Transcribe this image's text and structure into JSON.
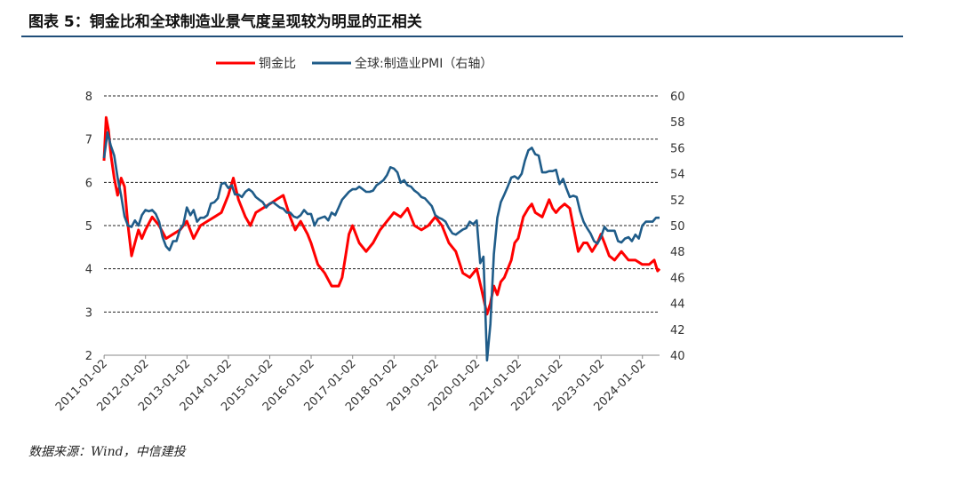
{
  "header": {
    "title": "图表 5：铜金比和全球制造业景气度呈现较为明显的正相关"
  },
  "footer": {
    "source": "数据来源：Wind，中信建投"
  },
  "chart_data": {
    "type": "line",
    "x_range": [
      "2011-01-01",
      "2024-06-01"
    ],
    "x_ticks": [
      "2011-01-02",
      "2012-01-02",
      "2013-01-02",
      "2014-01-02",
      "2015-01-02",
      "2016-01-02",
      "2017-01-02",
      "2018-01-02",
      "2019-01-02",
      "2020-01-02",
      "2021-01-02",
      "2022-01-02",
      "2023-01-02",
      "2024-01-02"
    ],
    "y_left": {
      "min": 2,
      "max": 8,
      "ticks": [
        2,
        3,
        4,
        5,
        6,
        7,
        8
      ]
    },
    "y_right": {
      "min": 40,
      "max": 60,
      "ticks": [
        40,
        42,
        44,
        46,
        48,
        50,
        52,
        54,
        56,
        58,
        60
      ]
    },
    "gridlines_left": [
      3,
      4,
      5,
      6,
      7,
      8
    ],
    "legend_position": "top",
    "series": [
      {
        "name": "铜金比",
        "axis": "left",
        "color": "#ff0000",
        "points": [
          [
            "2011-01-01",
            6.5
          ],
          [
            "2011-01-20",
            7.5
          ],
          [
            "2011-02-10",
            7.2
          ],
          [
            "2011-03-05",
            6.6
          ],
          [
            "2011-04-01",
            6.1
          ],
          [
            "2011-05-01",
            5.7
          ],
          [
            "2011-06-01",
            6.1
          ],
          [
            "2011-07-01",
            5.9
          ],
          [
            "2011-08-01",
            5.0
          ],
          [
            "2011-09-01",
            4.3
          ],
          [
            "2011-10-01",
            4.6
          ],
          [
            "2011-11-01",
            4.9
          ],
          [
            "2011-12-01",
            4.7
          ],
          [
            "2012-01-01",
            4.9
          ],
          [
            "2012-03-01",
            5.2
          ],
          [
            "2012-05-01",
            5.0
          ],
          [
            "2012-07-01",
            4.7
          ],
          [
            "2012-09-01",
            4.8
          ],
          [
            "2012-11-01",
            4.9
          ],
          [
            "2013-01-01",
            5.1
          ],
          [
            "2013-03-01",
            4.7
          ],
          [
            "2013-05-01",
            5.0
          ],
          [
            "2013-07-01",
            5.1
          ],
          [
            "2013-09-01",
            5.2
          ],
          [
            "2013-11-01",
            5.3
          ],
          [
            "2014-01-01",
            5.7
          ],
          [
            "2014-02-15",
            6.1
          ],
          [
            "2014-04-01",
            5.6
          ],
          [
            "2014-06-01",
            5.2
          ],
          [
            "2014-07-15",
            5.0
          ],
          [
            "2014-09-01",
            5.3
          ],
          [
            "2014-11-01",
            5.4
          ],
          [
            "2015-01-01",
            5.5
          ],
          [
            "2015-03-01",
            5.6
          ],
          [
            "2015-05-01",
            5.7
          ],
          [
            "2015-07-01",
            5.2
          ],
          [
            "2015-08-15",
            4.9
          ],
          [
            "2015-10-01",
            5.1
          ],
          [
            "2015-12-01",
            4.8
          ],
          [
            "2016-01-01",
            4.6
          ],
          [
            "2016-03-01",
            4.1
          ],
          [
            "2016-05-01",
            3.9
          ],
          [
            "2016-07-01",
            3.6
          ],
          [
            "2016-09-01",
            3.6
          ],
          [
            "2016-10-01",
            3.8
          ],
          [
            "2016-11-01",
            4.3
          ],
          [
            "2016-12-01",
            4.8
          ],
          [
            "2017-01-01",
            5.0
          ],
          [
            "2017-03-01",
            4.6
          ],
          [
            "2017-05-01",
            4.4
          ],
          [
            "2017-07-01",
            4.6
          ],
          [
            "2017-09-01",
            4.9
          ],
          [
            "2017-11-01",
            5.1
          ],
          [
            "2018-01-01",
            5.3
          ],
          [
            "2018-03-01",
            5.2
          ],
          [
            "2018-05-01",
            5.4
          ],
          [
            "2018-07-01",
            5.0
          ],
          [
            "2018-09-01",
            4.9
          ],
          [
            "2018-11-01",
            5.0
          ],
          [
            "2019-01-01",
            5.2
          ],
          [
            "2019-03-01",
            5.0
          ],
          [
            "2019-05-01",
            4.6
          ],
          [
            "2019-07-01",
            4.4
          ],
          [
            "2019-09-01",
            3.9
          ],
          [
            "2019-11-01",
            3.8
          ],
          [
            "2020-01-01",
            4.0
          ],
          [
            "2020-02-15",
            3.5
          ],
          [
            "2020-04-01",
            2.95
          ],
          [
            "2020-05-01",
            3.2
          ],
          [
            "2020-06-01",
            3.6
          ],
          [
            "2020-07-01",
            3.4
          ],
          [
            "2020-08-01",
            3.7
          ],
          [
            "2020-09-01",
            3.8
          ],
          [
            "2020-11-01",
            4.2
          ],
          [
            "2020-12-01",
            4.6
          ],
          [
            "2021-01-01",
            4.7
          ],
          [
            "2021-02-15",
            5.2
          ],
          [
            "2021-04-01",
            5.4
          ],
          [
            "2021-05-01",
            5.5
          ],
          [
            "2021-06-01",
            5.3
          ],
          [
            "2021-08-01",
            5.2
          ],
          [
            "2021-10-01",
            5.6
          ],
          [
            "2021-11-01",
            5.4
          ],
          [
            "2021-12-01",
            5.3
          ],
          [
            "2022-01-01",
            5.4
          ],
          [
            "2022-02-15",
            5.5
          ],
          [
            "2022-04-01",
            5.4
          ],
          [
            "2022-05-01",
            5.0
          ],
          [
            "2022-06-15",
            4.4
          ],
          [
            "2022-08-01",
            4.6
          ],
          [
            "2022-09-01",
            4.6
          ],
          [
            "2022-10-15",
            4.4
          ],
          [
            "2022-12-01",
            4.6
          ],
          [
            "2023-01-01",
            4.8
          ],
          [
            "2023-02-01",
            4.6
          ],
          [
            "2023-03-15",
            4.3
          ],
          [
            "2023-05-01",
            4.2
          ],
          [
            "2023-07-01",
            4.4
          ],
          [
            "2023-09-01",
            4.2
          ],
          [
            "2023-11-01",
            4.2
          ],
          [
            "2024-01-01",
            4.1
          ],
          [
            "2024-03-01",
            4.1
          ],
          [
            "2024-04-15",
            4.2
          ],
          [
            "2024-05-15",
            3.95
          ],
          [
            "2024-06-01",
            4.0
          ]
        ]
      },
      {
        "name": "全球:制造业PMI（右轴）",
        "axis": "right",
        "color": "#1f5c89",
        "points": [
          [
            "2011-01-01",
            55.2
          ],
          [
            "2011-02-01",
            57.2
          ],
          [
            "2011-03-01",
            56.2
          ],
          [
            "2011-04-01",
            55.4
          ],
          [
            "2011-05-01",
            53.7
          ],
          [
            "2011-06-01",
            52.3
          ],
          [
            "2011-07-01",
            50.7
          ],
          [
            "2011-08-01",
            50.0
          ],
          [
            "2011-09-01",
            49.9
          ],
          [
            "2011-10-01",
            50.4
          ],
          [
            "2011-11-01",
            50.0
          ],
          [
            "2011-12-01",
            50.8
          ],
          [
            "2012-01-01",
            51.2
          ],
          [
            "2012-02-01",
            51.1
          ],
          [
            "2012-03-01",
            51.2
          ],
          [
            "2012-04-01",
            50.9
          ],
          [
            "2012-05-01",
            50.3
          ],
          [
            "2012-06-01",
            49.1
          ],
          [
            "2012-07-01",
            48.4
          ],
          [
            "2012-08-01",
            48.1
          ],
          [
            "2012-09-01",
            48.8
          ],
          [
            "2012-10-01",
            48.8
          ],
          [
            "2012-11-01",
            49.7
          ],
          [
            "2012-12-01",
            50.1
          ],
          [
            "2013-01-01",
            51.4
          ],
          [
            "2013-02-01",
            50.8
          ],
          [
            "2013-03-01",
            51.2
          ],
          [
            "2013-04-01",
            50.3
          ],
          [
            "2013-05-01",
            50.6
          ],
          [
            "2013-06-01",
            50.6
          ],
          [
            "2013-07-01",
            50.8
          ],
          [
            "2013-08-01",
            51.7
          ],
          [
            "2013-09-01",
            51.8
          ],
          [
            "2013-10-01",
            52.1
          ],
          [
            "2013-11-01",
            53.2
          ],
          [
            "2013-12-01",
            53.3
          ],
          [
            "2014-01-01",
            52.9
          ],
          [
            "2014-02-01",
            53.1
          ],
          [
            "2014-03-01",
            52.4
          ],
          [
            "2014-04-01",
            52.4
          ],
          [
            "2014-05-01",
            52.2
          ],
          [
            "2014-06-01",
            52.6
          ],
          [
            "2014-07-01",
            52.8
          ],
          [
            "2014-08-01",
            52.6
          ],
          [
            "2014-09-01",
            52.2
          ],
          [
            "2014-10-01",
            52.0
          ],
          [
            "2014-11-01",
            51.8
          ],
          [
            "2014-12-01",
            51.4
          ],
          [
            "2015-01-01",
            51.7
          ],
          [
            "2015-02-01",
            51.8
          ],
          [
            "2015-03-01",
            51.6
          ],
          [
            "2015-04-01",
            51.4
          ],
          [
            "2015-05-01",
            51.3
          ],
          [
            "2015-06-01",
            51.0
          ],
          [
            "2015-07-01",
            51.0
          ],
          [
            "2015-08-01",
            50.7
          ],
          [
            "2015-09-01",
            50.6
          ],
          [
            "2015-10-01",
            50.8
          ],
          [
            "2015-11-01",
            51.2
          ],
          [
            "2015-12-01",
            50.9
          ],
          [
            "2016-01-01",
            50.9
          ],
          [
            "2016-02-01",
            50.0
          ],
          [
            "2016-03-01",
            50.5
          ],
          [
            "2016-04-01",
            50.6
          ],
          [
            "2016-05-01",
            50.7
          ],
          [
            "2016-06-01",
            50.4
          ],
          [
            "2016-07-01",
            51.0
          ],
          [
            "2016-08-01",
            50.8
          ],
          [
            "2016-09-01",
            51.4
          ],
          [
            "2016-10-01",
            52.0
          ],
          [
            "2016-11-01",
            52.3
          ],
          [
            "2016-12-01",
            52.6
          ],
          [
            "2017-01-01",
            52.8
          ],
          [
            "2017-02-01",
            52.8
          ],
          [
            "2017-03-01",
            53.0
          ],
          [
            "2017-04-01",
            52.8
          ],
          [
            "2017-05-01",
            52.6
          ],
          [
            "2017-06-01",
            52.6
          ],
          [
            "2017-07-01",
            52.7
          ],
          [
            "2017-08-01",
            53.1
          ],
          [
            "2017-09-01",
            53.3
          ],
          [
            "2017-10-01",
            53.5
          ],
          [
            "2017-11-01",
            53.9
          ],
          [
            "2017-12-01",
            54.5
          ],
          [
            "2018-01-01",
            54.4
          ],
          [
            "2018-02-01",
            54.1
          ],
          [
            "2018-03-01",
            53.3
          ],
          [
            "2018-04-01",
            53.5
          ],
          [
            "2018-05-01",
            53.1
          ],
          [
            "2018-06-01",
            53.0
          ],
          [
            "2018-07-01",
            52.7
          ],
          [
            "2018-08-01",
            52.5
          ],
          [
            "2018-09-01",
            52.2
          ],
          [
            "2018-10-01",
            52.1
          ],
          [
            "2018-11-01",
            51.8
          ],
          [
            "2018-12-01",
            51.5
          ],
          [
            "2019-01-01",
            50.8
          ],
          [
            "2019-02-01",
            50.6
          ],
          [
            "2019-03-01",
            50.5
          ],
          [
            "2019-04-01",
            50.3
          ],
          [
            "2019-05-01",
            49.8
          ],
          [
            "2019-06-01",
            49.4
          ],
          [
            "2019-07-01",
            49.3
          ],
          [
            "2019-08-01",
            49.5
          ],
          [
            "2019-09-01",
            49.7
          ],
          [
            "2019-10-01",
            49.8
          ],
          [
            "2019-11-01",
            50.3
          ],
          [
            "2019-12-01",
            50.1
          ],
          [
            "2020-01-01",
            50.4
          ],
          [
            "2020-02-01",
            47.1
          ],
          [
            "2020-03-01",
            47.6
          ],
          [
            "2020-04-01",
            39.6
          ],
          [
            "2020-05-01",
            42.4
          ],
          [
            "2020-06-01",
            47.8
          ],
          [
            "2020-07-01",
            50.6
          ],
          [
            "2020-08-01",
            51.8
          ],
          [
            "2020-09-01",
            52.4
          ],
          [
            "2020-10-01",
            53.0
          ],
          [
            "2020-11-01",
            53.7
          ],
          [
            "2020-12-01",
            53.8
          ],
          [
            "2021-01-01",
            53.6
          ],
          [
            "2021-02-01",
            54.0
          ],
          [
            "2021-03-01",
            55.0
          ],
          [
            "2021-04-01",
            55.8
          ],
          [
            "2021-05-01",
            56.0
          ],
          [
            "2021-06-01",
            55.5
          ],
          [
            "2021-07-01",
            55.4
          ],
          [
            "2021-08-01",
            54.1
          ],
          [
            "2021-09-01",
            54.1
          ],
          [
            "2021-10-01",
            54.2
          ],
          [
            "2021-11-01",
            54.2
          ],
          [
            "2021-12-01",
            54.3
          ],
          [
            "2022-01-01",
            53.2
          ],
          [
            "2022-02-01",
            53.6
          ],
          [
            "2022-03-01",
            52.9
          ],
          [
            "2022-04-01",
            52.2
          ],
          [
            "2022-05-01",
            52.3
          ],
          [
            "2022-06-01",
            52.2
          ],
          [
            "2022-07-01",
            51.1
          ],
          [
            "2022-08-01",
            50.3
          ],
          [
            "2022-09-01",
            49.8
          ],
          [
            "2022-10-01",
            49.4
          ],
          [
            "2022-11-01",
            48.8
          ],
          [
            "2022-12-01",
            48.6
          ],
          [
            "2023-01-01",
            49.1
          ],
          [
            "2023-02-01",
            49.9
          ],
          [
            "2023-03-01",
            49.6
          ],
          [
            "2023-04-01",
            49.6
          ],
          [
            "2023-05-01",
            49.6
          ],
          [
            "2023-06-01",
            48.8
          ],
          [
            "2023-07-01",
            48.7
          ],
          [
            "2023-08-01",
            49.0
          ],
          [
            "2023-09-01",
            49.1
          ],
          [
            "2023-10-01",
            48.8
          ],
          [
            "2023-11-01",
            49.3
          ],
          [
            "2023-12-01",
            49.0
          ],
          [
            "2024-01-01",
            50.0
          ],
          [
            "2024-02-01",
            50.3
          ],
          [
            "2024-03-01",
            50.3
          ],
          [
            "2024-04-01",
            50.3
          ],
          [
            "2024-05-01",
            50.6
          ],
          [
            "2024-06-01",
            50.6
          ]
        ]
      }
    ]
  }
}
